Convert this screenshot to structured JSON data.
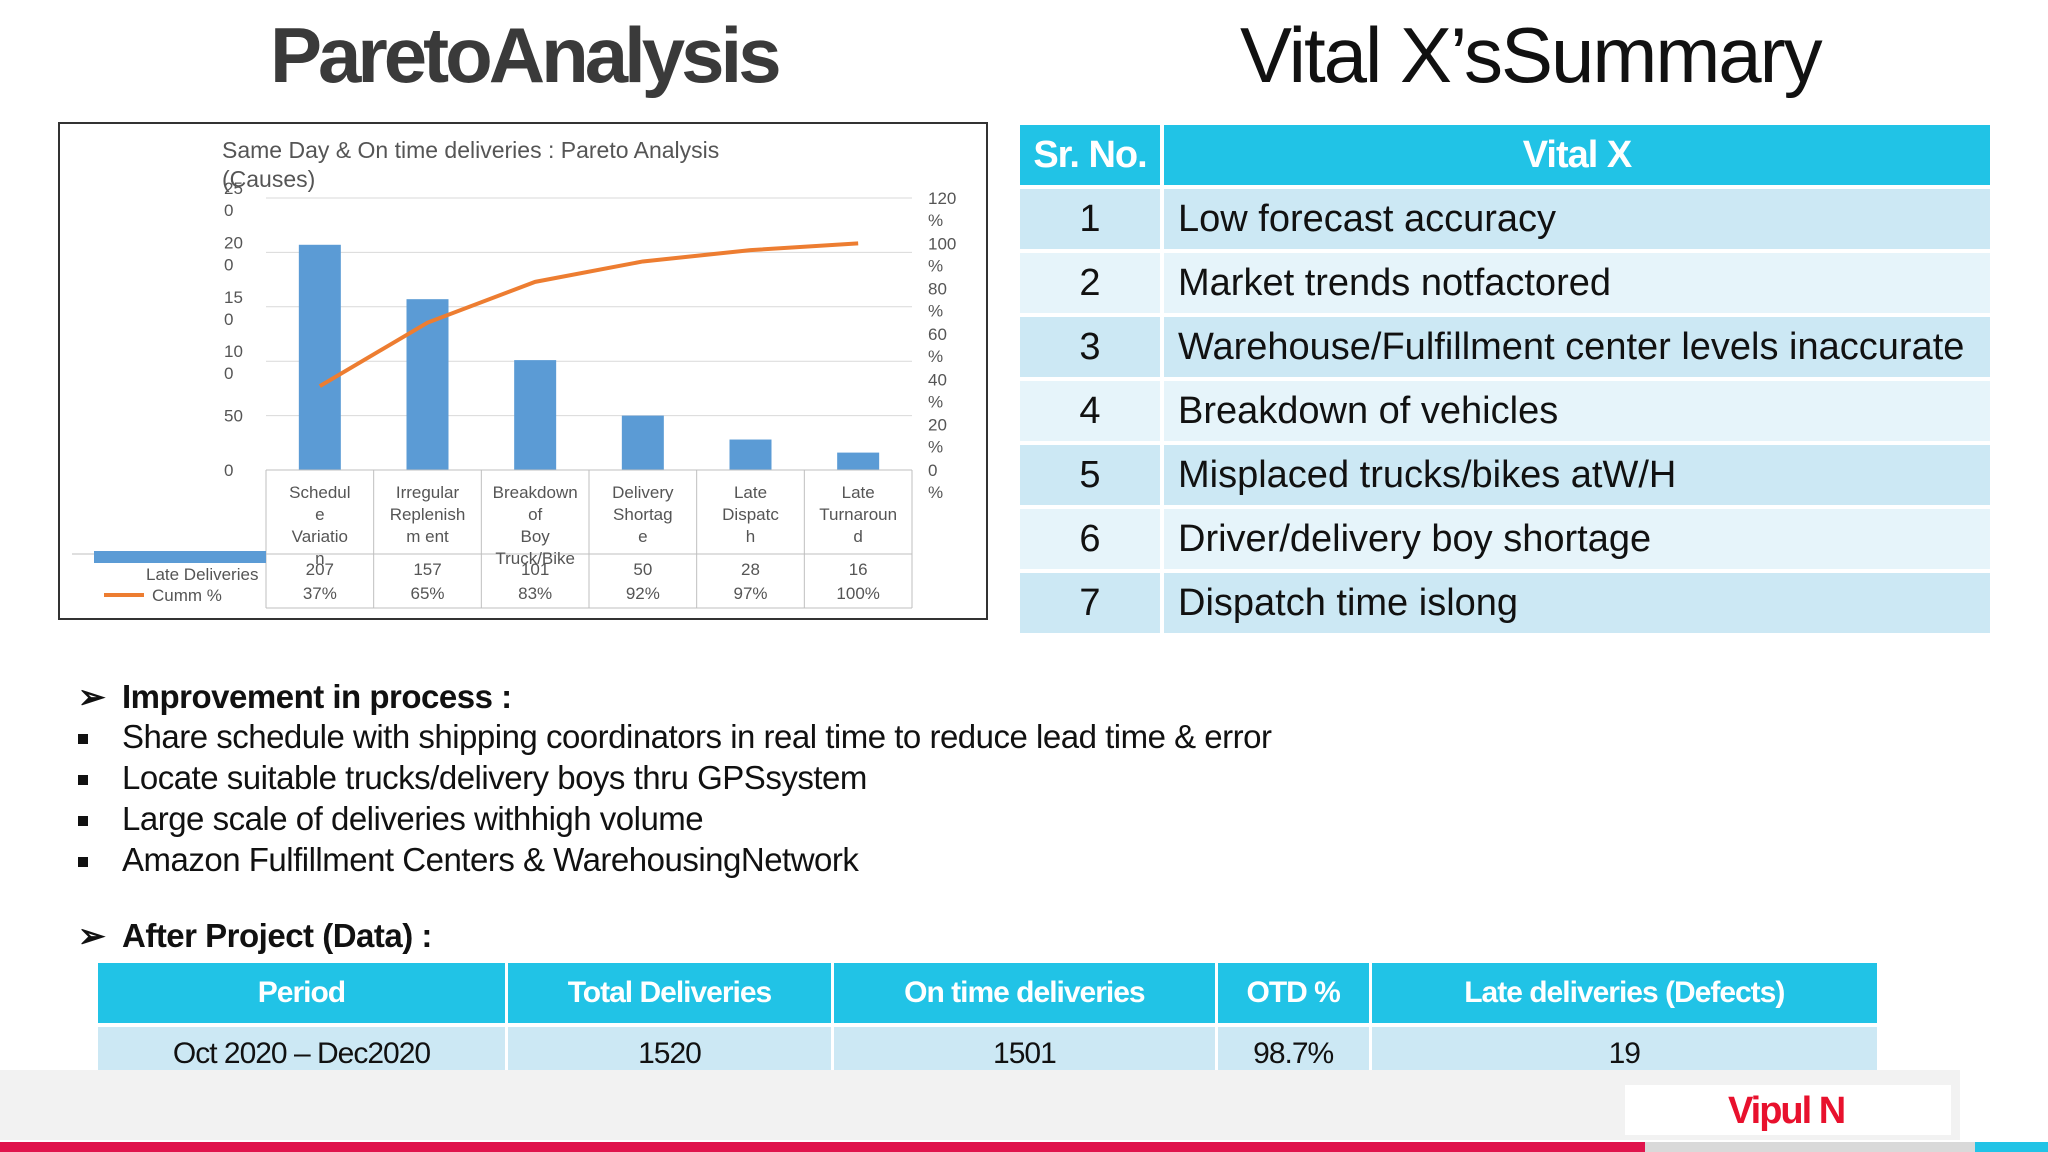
{
  "titles": {
    "left": "ParetoAnalysis",
    "right": "Vital X’sSummary"
  },
  "chart_data": {
    "type": "bar",
    "title": "Same Day & On time deliveries : Pareto Analysis (Causes)",
    "categories": [
      "Schedule Variation",
      "Irregular Replenishment",
      "Breakdown of Boy Truck/Bike",
      "Delivery Shortage",
      "Late Dispatch",
      "Late Turnaround"
    ],
    "category_label_lines": [
      [
        "Schedul",
        "e",
        "Variatio",
        "n"
      ],
      [
        "Irregular",
        "Replenish",
        "m   ent"
      ],
      [
        "Breakdown",
        "of",
        "Boy",
        "Truck/Bike"
      ],
      [
        "Delivery",
        "Shortag",
        "e"
      ],
      [
        "Late",
        "Dispatc",
        "h"
      ],
      [
        "Late",
        "Turnaroun",
        "d"
      ]
    ],
    "series": [
      {
        "name": "Late Deliveries",
        "type": "bar",
        "values": [
          207,
          157,
          101,
          50,
          28,
          16
        ],
        "color": "#5b9bd5"
      },
      {
        "name": "Cumm %",
        "type": "line",
        "values": [
          37,
          65,
          83,
          92,
          97,
          100
        ],
        "color": "#ed7d31"
      }
    ],
    "table_values": [
      "207",
      "157",
      "101",
      "50",
      "28",
      "16"
    ],
    "table_percent": [
      "37%",
      "65%",
      "83%",
      "92%",
      "97%",
      "100%"
    ],
    "legend": [
      "Late Deliveries",
      "Cumm %"
    ],
    "y_left_ticks": [
      [
        "25",
        "0"
      ],
      [
        "20",
        "0"
      ],
      [
        "15",
        "0"
      ],
      [
        "10",
        "0"
      ],
      [
        "50"
      ],
      [
        "0"
      ]
    ],
    "y_left_values": [
      250,
      200,
      150,
      100,
      50,
      0
    ],
    "y_right_ticks": [
      [
        "120",
        "%"
      ],
      [
        "100",
        "%"
      ],
      [
        "80",
        "%"
      ],
      [
        "60",
        "%"
      ],
      [
        "40",
        "%"
      ],
      [
        "20",
        "%"
      ],
      [
        "0",
        "%"
      ]
    ],
    "y_right_values": [
      120,
      100,
      80,
      60,
      40,
      20,
      0
    ],
    "ylim_left": [
      0,
      250
    ],
    "ylim_right": [
      0,
      120
    ]
  },
  "vital": {
    "header_no": "Sr. No.",
    "header_x": "Vital X",
    "rows": [
      {
        "no": "1",
        "text": "Low forecast accuracy"
      },
      {
        "no": "2",
        "text": "Market trends notfactored"
      },
      {
        "no": "3",
        "text": "Warehouse/Fulfillment center levels inaccurate"
      },
      {
        "no": "4",
        "text": "Breakdown of vehicles"
      },
      {
        "no": "5",
        "text": "Misplaced trucks/bikes atW/H"
      },
      {
        "no": "6",
        "text": "Driver/delivery boy shortage"
      },
      {
        "no": "7",
        "text": "Dispatch time islong"
      }
    ]
  },
  "improvement": {
    "heading": "Improvement in process :",
    "items": [
      "Share schedule with shipping coordinators in real time to reduce lead time & error",
      "Locate suitable trucks/delivery boys thru GPSsystem",
      "Large scale of deliveries withhigh volume",
      "Amazon Fulfillment Centers & WarehousingNetwork"
    ]
  },
  "after": {
    "heading": "After Project (Data) :",
    "headers": [
      "Period",
      "Total Deliveries",
      "On time deliveries",
      "OTD %",
      "Late deliveries (Defects)"
    ],
    "row": [
      "Oct 2020 – Dec2020",
      "1520",
      "1501",
      "98.7%",
      "19"
    ]
  },
  "footer": {
    "author": "Vipul N"
  },
  "colors": {
    "accent": "#21c3e6",
    "row_dark": "#cce8f4",
    "row_light": "#e6f4fa",
    "brand_red": "#e8112d",
    "bar": "#5b9bd5",
    "line": "#ed7d31"
  }
}
